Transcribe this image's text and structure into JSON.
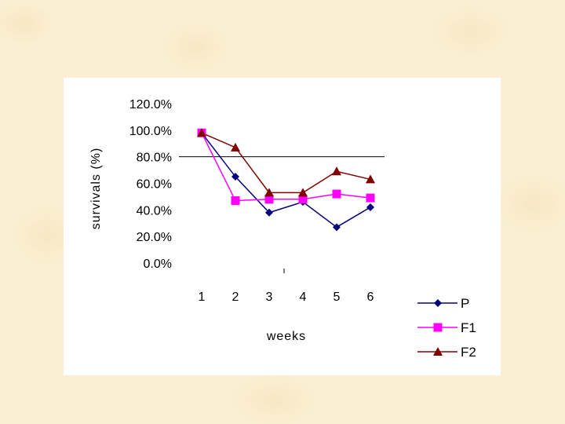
{
  "chart_data": {
    "type": "line",
    "title": "",
    "xlabel": "weeks",
    "ylabel": "survivals (%)",
    "categories": [
      "1",
      "2",
      "3",
      "4",
      "5",
      "6"
    ],
    "y_ticks": [
      "0.0%",
      "20.0%",
      "40.0%",
      "60.0%",
      "80.0%",
      "100.0%",
      "120.0%"
    ],
    "ylim": [
      0,
      120
    ],
    "reference_line": 80,
    "grid": false,
    "legend_position": "bottom-right",
    "series": [
      {
        "name": "P",
        "color": "#000080",
        "marker": "diamond",
        "values": [
          98,
          65,
          38,
          46,
          27,
          42
        ]
      },
      {
        "name": "F1",
        "color": "#ff00ff",
        "marker": "square",
        "values": [
          98,
          47,
          48,
          48,
          52,
          49
        ]
      },
      {
        "name": "F2",
        "color": "#800000",
        "marker": "triangle",
        "values": [
          98,
          87,
          53,
          53,
          69,
          63
        ]
      }
    ]
  }
}
